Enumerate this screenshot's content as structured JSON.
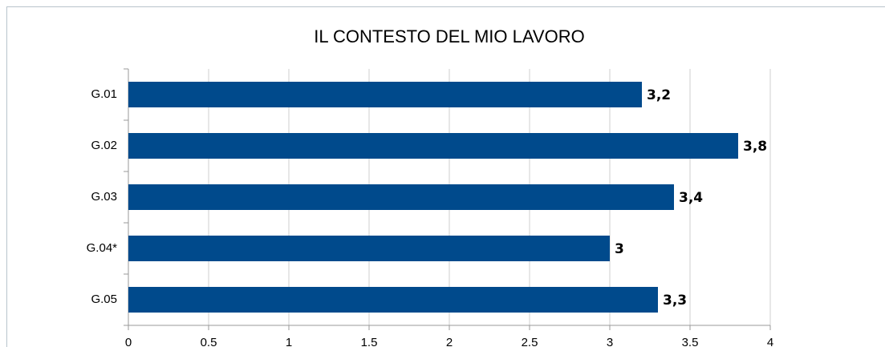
{
  "chart_data": {
    "type": "bar",
    "orientation": "horizontal",
    "title": "IL CONTESTO DEL MIO LAVORO",
    "categories": [
      "G.01",
      "G.02",
      "G.03",
      "G.04*",
      "G.05"
    ],
    "values": [
      3.2,
      3.8,
      3.4,
      3,
      3.3
    ],
    "value_labels": [
      "3,2",
      "3,8",
      "3,4",
      "3",
      "3,3"
    ],
    "color": "#004a8c",
    "xlim": [
      0,
      4
    ],
    "xticks": [
      0,
      0.5,
      1,
      1.5,
      2,
      2.5,
      3,
      3.5,
      4
    ],
    "grid": true
  }
}
